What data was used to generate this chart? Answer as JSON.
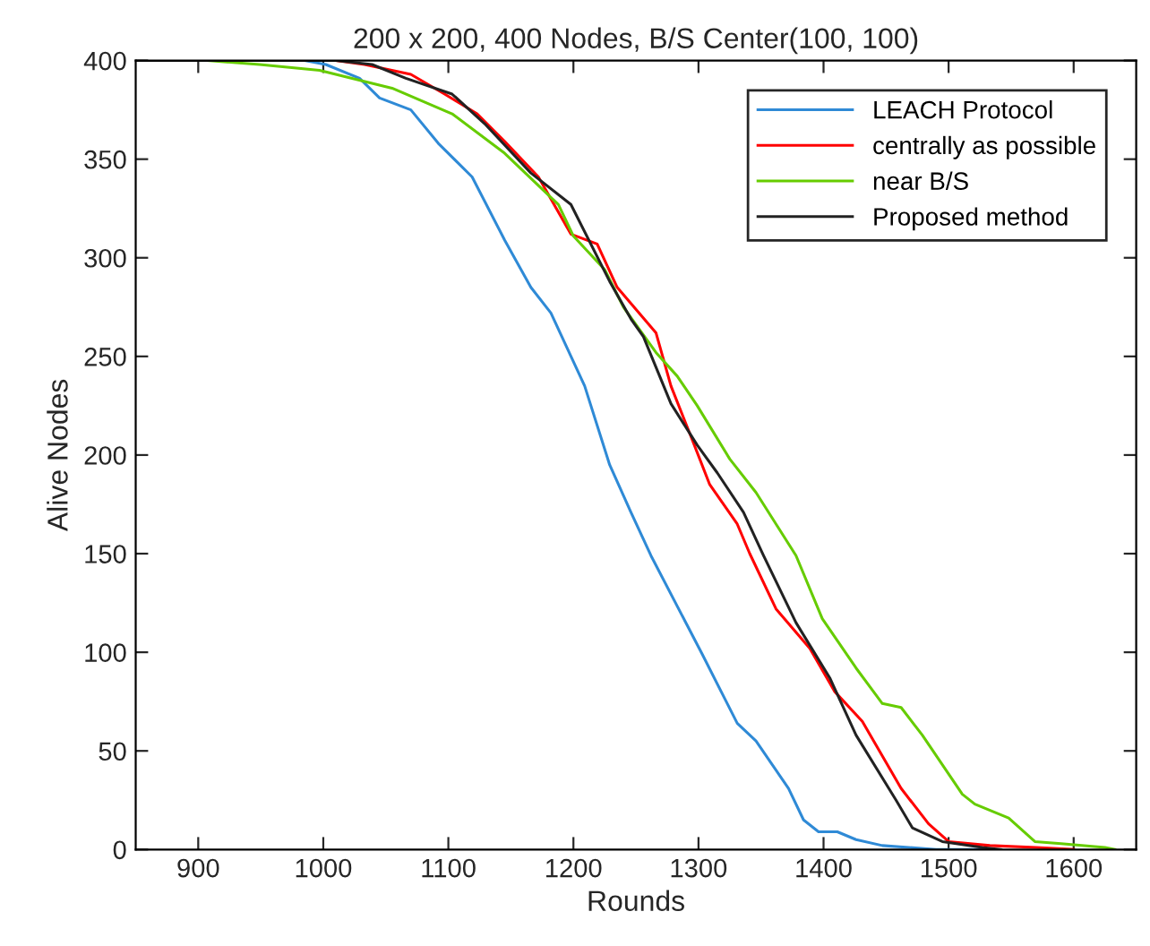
{
  "chart_data": {
    "type": "line",
    "title": "200 x 200, 400 Nodes, B/S Center(100, 100)",
    "xlabel": "Rounds",
    "ylabel": "Alive Nodes",
    "xlim": [
      850,
      1650
    ],
    "xticks": [
      900,
      1000,
      1100,
      1200,
      1300,
      1400,
      1500,
      1600
    ],
    "ylim": [
      0,
      400
    ],
    "yticks": [
      0,
      50,
      100,
      150,
      200,
      250,
      300,
      350,
      400
    ],
    "grid": false,
    "legend": "top right",
    "marker": "none",
    "line_style": "solid",
    "series": [
      {
        "name": "LEACH Protocol",
        "color": "#2f8ad6",
        "x": [
          850,
          985,
          1002,
          1029,
          1045,
          1070,
          1092,
          1119,
          1145,
          1166,
          1182,
          1209,
          1229,
          1246,
          1262,
          1303,
          1331,
          1346,
          1372,
          1384,
          1396,
          1411,
          1426,
          1447,
          1490,
          1530
        ],
        "values": [
          400,
          400,
          398,
          391,
          381,
          375,
          358,
          341,
          309,
          285,
          272,
          235,
          195,
          171,
          149,
          99,
          64,
          55,
          31,
          15,
          9,
          9,
          5,
          2,
          0,
          0
        ]
      },
      {
        "name": "centrally as possible",
        "color": "#ff0000",
        "x": [
          850,
          1010,
          1033,
          1070,
          1097,
          1123,
          1145,
          1172,
          1198,
          1219,
          1235,
          1266,
          1278,
          1293,
          1309,
          1331,
          1341,
          1362,
          1389,
          1409,
          1431,
          1462,
          1484,
          1500,
          1533,
          1570,
          1600
        ],
        "values": [
          400,
          400,
          398,
          393,
          383,
          373,
          359,
          341,
          312,
          307,
          285,
          262,
          235,
          211,
          185,
          165,
          150,
          122,
          102,
          80,
          65,
          31,
          13,
          4,
          2,
          1,
          0
        ]
      },
      {
        "name": "near B/S",
        "color": "#66cc00",
        "x": [
          850,
          907,
          949,
          997,
          1023,
          1055,
          1103,
          1145,
          1188,
          1200,
          1225,
          1240,
          1266,
          1283,
          1299,
          1325,
          1346,
          1362,
          1378,
          1399,
          1426,
          1447,
          1462,
          1479,
          1511,
          1521,
          1548,
          1569,
          1590,
          1625,
          1633
        ],
        "values": [
          400,
          400,
          398,
          395,
          391,
          386,
          373,
          353,
          327,
          311,
          294,
          275,
          252,
          240,
          225,
          198,
          181,
          165,
          149,
          117,
          92,
          74,
          72,
          58,
          28,
          23,
          16,
          4,
          3,
          1,
          0
        ]
      },
      {
        "name": "Proposed method",
        "color": "#222222",
        "x": [
          850,
          1010,
          1039,
          1066,
          1103,
          1129,
          1166,
          1198,
          1229,
          1246,
          1256,
          1278,
          1299,
          1315,
          1336,
          1352,
          1378,
          1405,
          1426,
          1458,
          1471,
          1495,
          1527,
          1542
        ],
        "values": [
          400,
          400,
          398,
          391,
          383,
          368,
          343,
          327,
          288,
          269,
          260,
          226,
          205,
          191,
          171,
          149,
          115,
          87,
          58,
          25,
          11,
          4,
          1,
          0
        ]
      }
    ]
  }
}
